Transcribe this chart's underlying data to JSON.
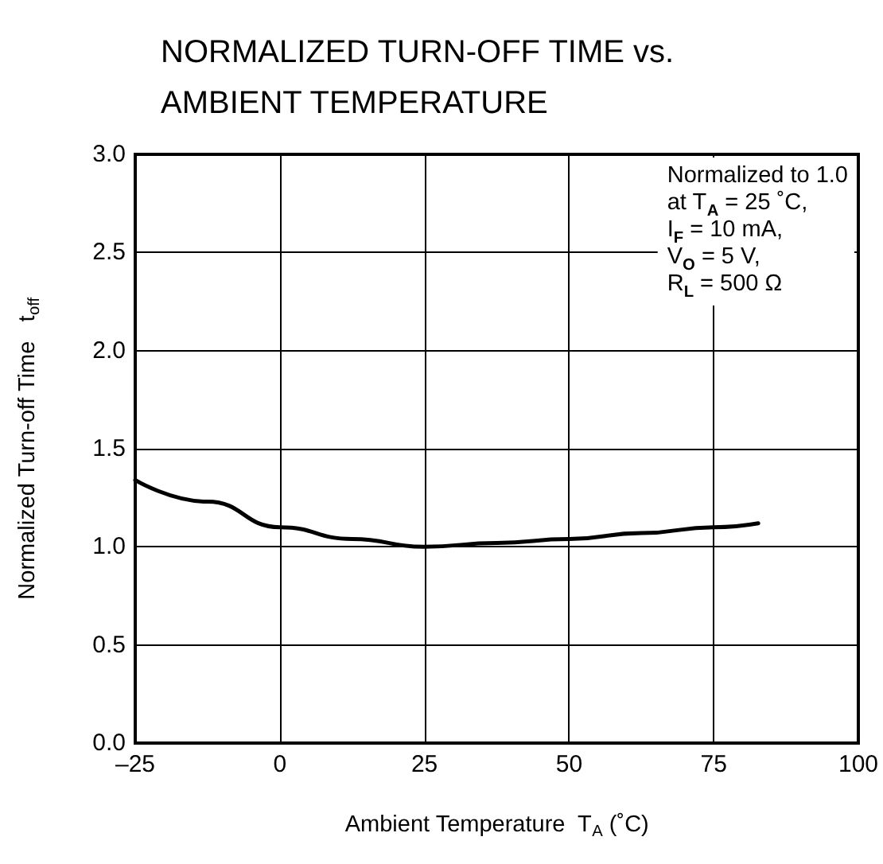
{
  "chart_data": {
    "type": "line",
    "title": "NORMALIZED TURN-OFF TIME vs.\nAMBIENT TEMPERATURE",
    "xlabel": "Ambient Temperature  T$_{A}$ (˚C)",
    "ylabel": "Normalized Turn-off Time   t$_{off}$",
    "annotations": [
      "Normalized to 1.0\nat T$_{A}$ = 25 ˚C,\nI$_{F}$ = 10 mA,\nV$_{O}$ = 5 V,\nR$_{L}$ = 500 Ω"
    ],
    "x": [
      -25,
      -12.5,
      0,
      12.5,
      25,
      37.5,
      50,
      62.5,
      75,
      82.7
    ],
    "series": [
      {
        "color": "#000000",
        "values": [
          1.34,
          1.23,
          1.1,
          1.04,
          1.0,
          1.02,
          1.04,
          1.07,
          1.1,
          1.12
        ]
      }
    ],
    "xlim": [
      -25,
      100
    ],
    "xticks": [
      {
        "value": -25,
        "label": "–25"
      },
      0,
      25,
      50,
      75,
      100
    ],
    "ylim": [
      0,
      3
    ],
    "yticks": [
      {
        "value": 0,
        "label": "0.0"
      },
      0.5,
      {
        "value": 1,
        "label": "1.0"
      },
      1.5,
      {
        "value": 2,
        "label": "2.0"
      },
      2.5,
      {
        "value": 3,
        "label": "3.0"
      }
    ],
    "grid": true,
    "marker": "none",
    "line_style": "solid"
  }
}
